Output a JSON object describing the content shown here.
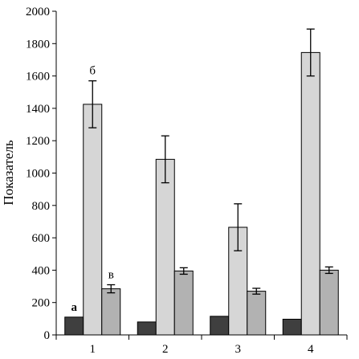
{
  "chart_data": {
    "type": "bar",
    "title": "",
    "xlabel": "",
    "ylabel": "Показатель",
    "ylim": [
      0,
      2000
    ],
    "yticks": [
      0,
      200,
      400,
      600,
      800,
      1000,
      1200,
      1400,
      1600,
      1800,
      2000
    ],
    "categories": [
      "1",
      "2",
      "3",
      "4"
    ],
    "grid": false,
    "legend": "none",
    "series": [
      {
        "color": "#3f3f3f",
        "values": [
          110,
          80,
          115,
          97
        ],
        "errors": [
          0,
          0,
          0,
          0
        ]
      },
      {
        "color": "#d6d6d6",
        "values": [
          1425,
          1085,
          665,
          1745
        ],
        "errors": [
          145,
          145,
          145,
          145
        ]
      },
      {
        "color": "#b2b2b2",
        "values": [
          285,
          395,
          270,
          400
        ],
        "errors": [
          25,
          20,
          18,
          20
        ]
      }
    ],
    "annotations": [
      {
        "text": "а",
        "category": "1",
        "series": 0,
        "bold": true
      },
      {
        "text": "б",
        "category": "1",
        "series": 1,
        "bold": false
      },
      {
        "text": "в",
        "category": "1",
        "series": 2,
        "bold": false
      }
    ]
  }
}
